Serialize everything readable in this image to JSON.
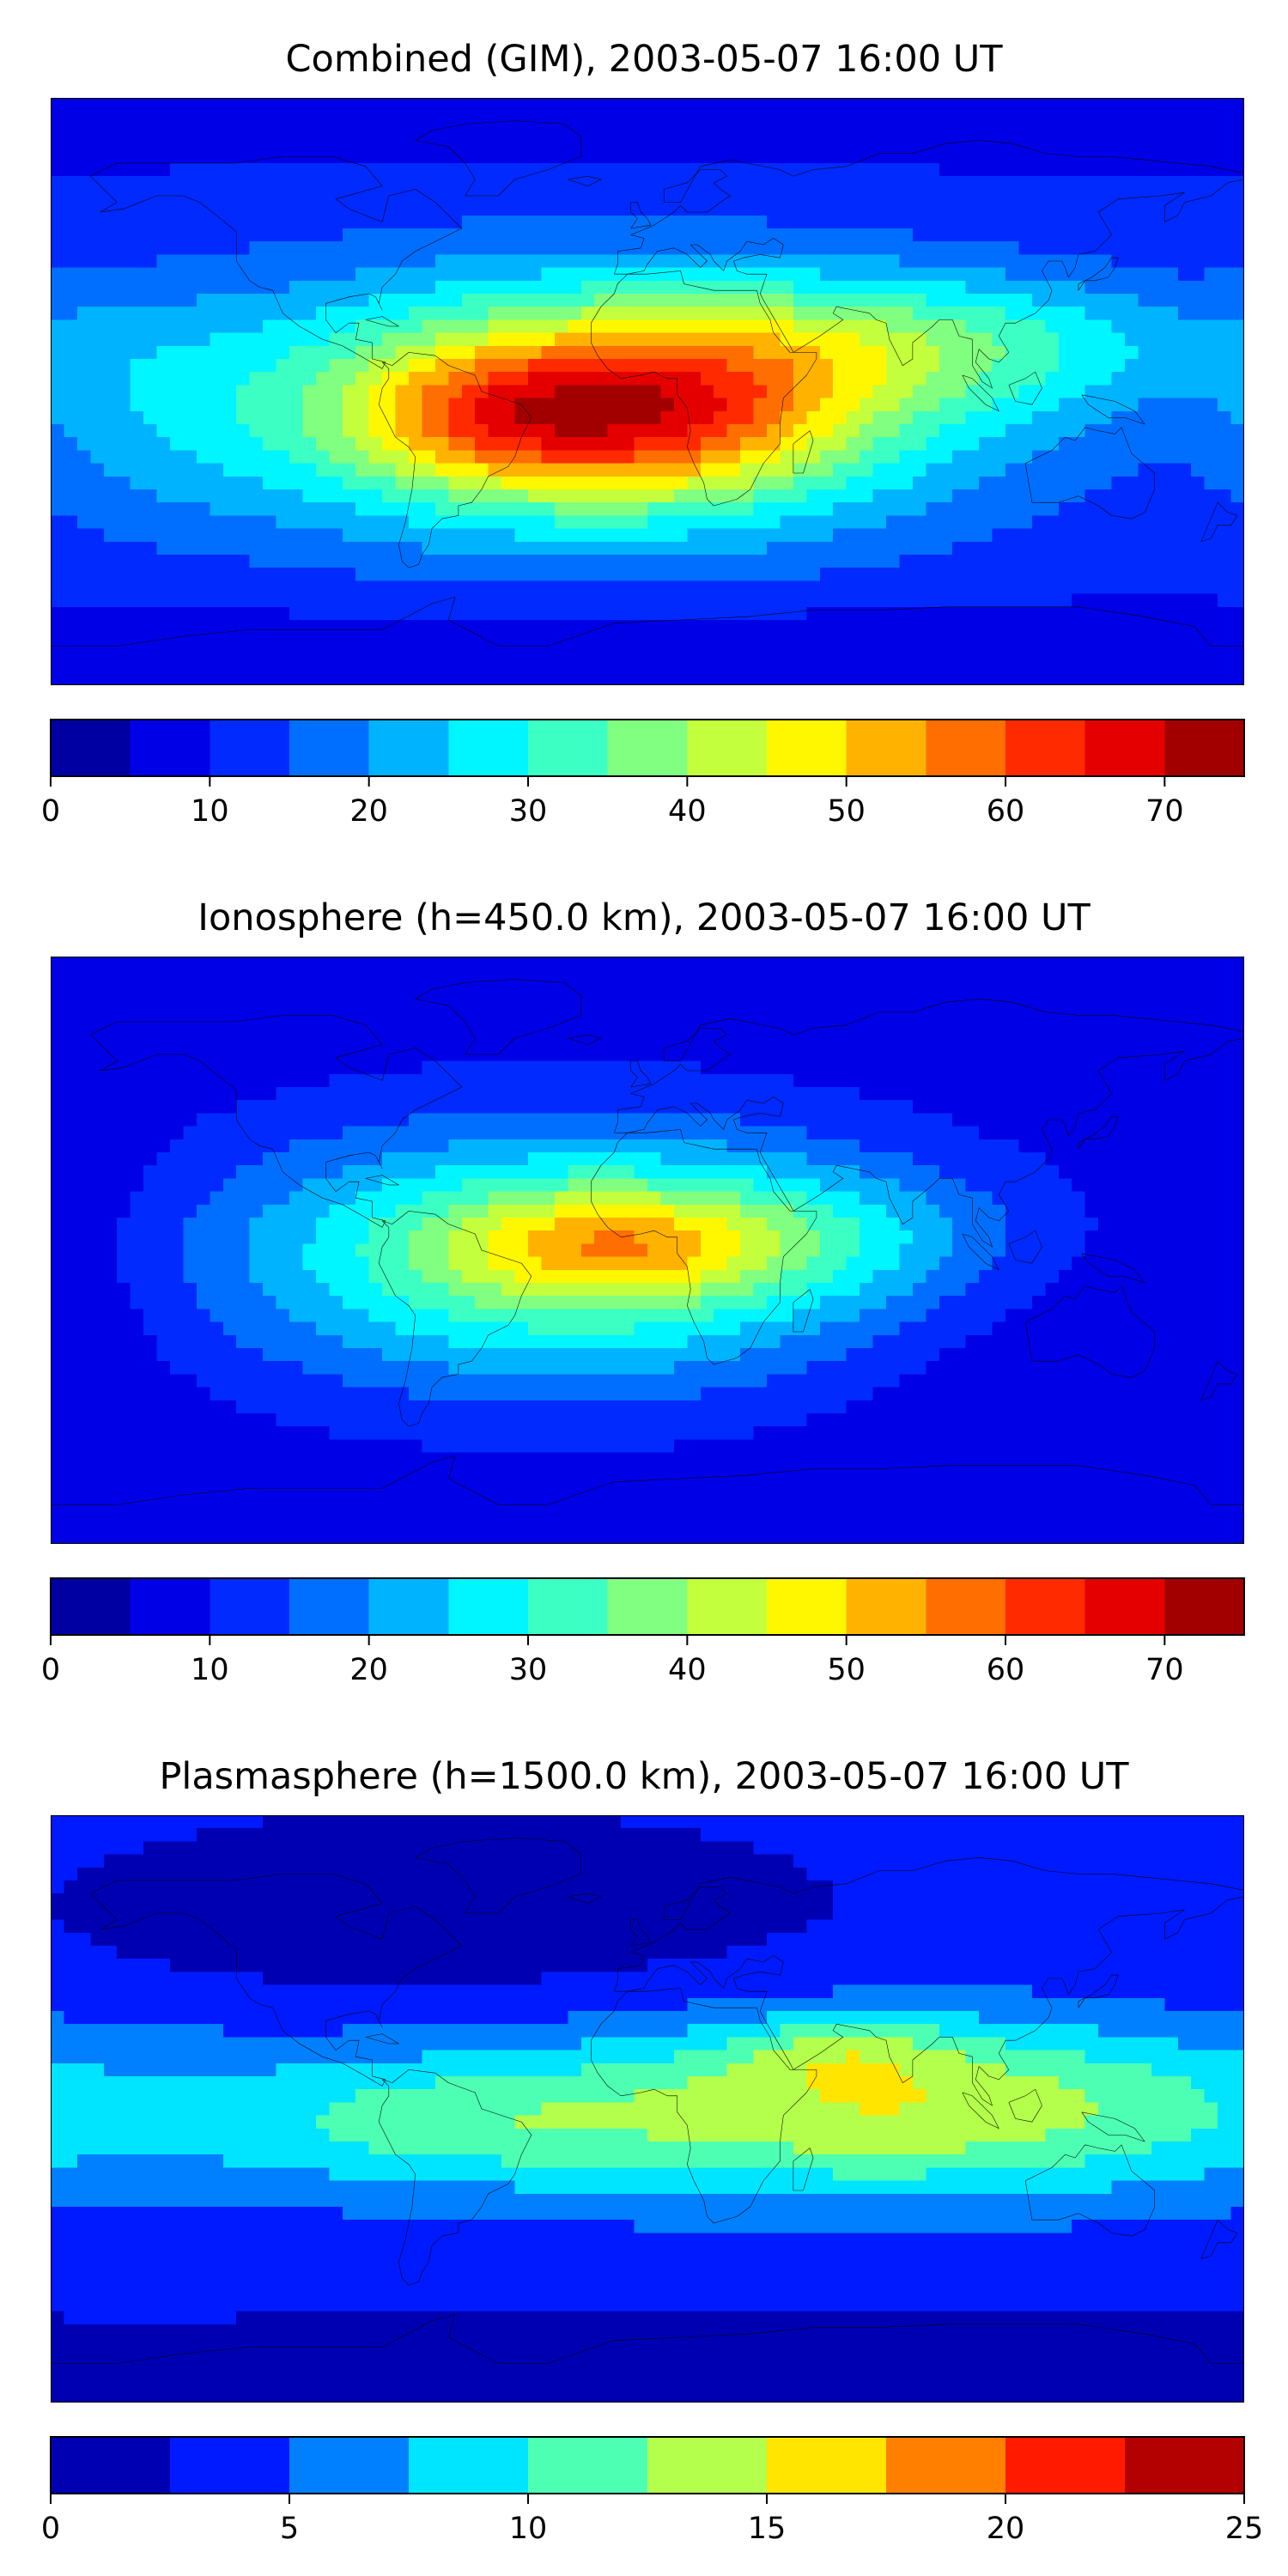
{
  "chart_data": [
    {
      "type": "heatmap",
      "title": "Combined (GIM), 2003-05-07 16:00 UT",
      "projection": "plate-carree",
      "lon_range": [
        -180,
        180
      ],
      "lat_range": [
        -90,
        90
      ],
      "coastlines": true,
      "colormap": "jet",
      "colorbar": {
        "location": "bottom",
        "vmin": 0,
        "vmax": 75,
        "step": 5,
        "ticks": [
          0,
          10,
          20,
          30,
          40,
          50,
          60,
          70
        ],
        "tick_labels": [
          "0",
          "10",
          "20",
          "30",
          "40",
          "50",
          "60",
          "70"
        ]
      },
      "field": {
        "background": 10,
        "blobs": [
          {
            "lon": -20,
            "lat": -4,
            "sx": 90,
            "sy": 30,
            "amp": 30
          },
          {
            "lon": -5,
            "lat": -8,
            "sx": 45,
            "sy": 18,
            "amp": 28
          },
          {
            "lon": -55,
            "lat": -8,
            "sx": 28,
            "sy": 14,
            "amp": 10
          },
          {
            "lon": 80,
            "lat": 15,
            "sx": 70,
            "sy": 15,
            "amp": 16
          },
          {
            "lon": -150,
            "lat": -10,
            "sx": 30,
            "sy": 25,
            "amp": 4
          },
          {
            "lon": 0,
            "lat": -80,
            "sx": 180,
            "sy": 10,
            "amp": -5
          },
          {
            "lon": 0,
            "lat": 85,
            "sx": 180,
            "sy": 10,
            "amp": -4
          }
        ]
      }
    },
    {
      "type": "heatmap",
      "title": "Ionosphere  (h=450.0 km), 2003-05-07 16:00 UT",
      "projection": "plate-carree",
      "lon_range": [
        -180,
        180
      ],
      "lat_range": [
        -90,
        90
      ],
      "coastlines": true,
      "colormap": "jet",
      "colorbar": {
        "location": "bottom",
        "vmin": 0,
        "vmax": 75,
        "step": 5,
        "ticks": [
          0,
          10,
          20,
          30,
          40,
          50,
          60,
          70
        ],
        "tick_labels": [
          "0",
          "10",
          "20",
          "30",
          "40",
          "50",
          "60",
          "70"
        ]
      },
      "field": {
        "background": 7,
        "blobs": [
          {
            "lon": -25,
            "lat": -2,
            "sx": 75,
            "sy": 28,
            "amp": 30
          },
          {
            "lon": -10,
            "lat": 2,
            "sx": 35,
            "sy": 12,
            "amp": 18
          },
          {
            "lon": 60,
            "lat": 5,
            "sx": 40,
            "sy": 14,
            "amp": 8
          },
          {
            "lon": 120,
            "lat": -30,
            "sx": 50,
            "sy": 30,
            "amp": -3
          },
          {
            "lon": -170,
            "lat": 0,
            "sx": 20,
            "sy": 40,
            "amp": -3
          }
        ]
      }
    },
    {
      "type": "heatmap",
      "title": "Plasmasphere (h=1500.0 km), 2003-05-07 16:00 UT",
      "projection": "plate-carree",
      "lon_range": [
        -180,
        180
      ],
      "lat_range": [
        -90,
        90
      ],
      "coastlines": true,
      "colormap": "jet",
      "colorbar": {
        "location": "bottom",
        "vmin": 0,
        "vmax": 25,
        "step": 2.5,
        "ticks": [
          0,
          5,
          10,
          15,
          20,
          25
        ],
        "tick_labels": [
          "0",
          "5",
          "10",
          "15",
          "20",
          "25"
        ]
      },
      "field": {
        "background": 3,
        "blobs": [
          {
            "lon": 20,
            "lat": 0,
            "sx": 200,
            "sy": 22,
            "amp": 6
          },
          {
            "lon": 80,
            "lat": 0,
            "sx": 70,
            "sy": 18,
            "amp": 6
          },
          {
            "lon": 60,
            "lat": 18,
            "sx": 25,
            "sy": 8,
            "amp": 4
          },
          {
            "lon": -60,
            "lat": -5,
            "sx": 45,
            "sy": 12,
            "amp": 3
          },
          {
            "lon": 30,
            "lat": -80,
            "sx": 180,
            "sy": 12,
            "amp": -2
          },
          {
            "lon": -60,
            "lat": 50,
            "sx": 80,
            "sy": 25,
            "amp": -2
          }
        ]
      }
    }
  ]
}
